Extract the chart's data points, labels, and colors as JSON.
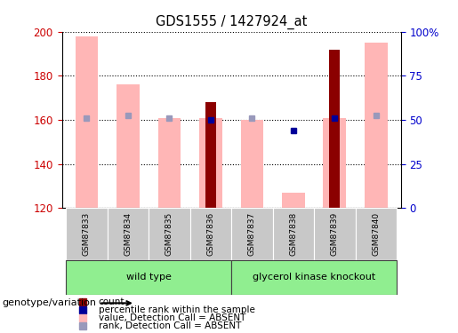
{
  "title": "GDS1555 / 1427924_at",
  "samples": [
    "GSM87833",
    "GSM87834",
    "GSM87835",
    "GSM87836",
    "GSM87837",
    "GSM87838",
    "GSM87839",
    "GSM87840"
  ],
  "pink_bar_heights": [
    198,
    176,
    161,
    161,
    160,
    127,
    161,
    195
  ],
  "red_bar_heights": [
    null,
    null,
    null,
    168,
    null,
    null,
    192,
    null
  ],
  "rank_y": [
    161,
    162,
    161,
    160,
    161,
    155,
    161,
    162
  ],
  "rank_is_dark": [
    false,
    false,
    false,
    true,
    false,
    true,
    true,
    false
  ],
  "ylim_left": [
    120,
    200
  ],
  "ylim_right": [
    0,
    100
  ],
  "yticks_left": [
    120,
    140,
    160,
    180,
    200
  ],
  "ytick_labels_right": [
    "0",
    "25",
    "50",
    "75",
    "100%"
  ],
  "yticks_right": [
    0,
    25,
    50,
    75,
    100
  ],
  "color_pink_bar": "#FFB6B6",
  "color_red_bar": "#8B0000",
  "color_rank_dark": "#000099",
  "color_rank_light": "#9999BB",
  "color_left_axis": "#CC0000",
  "color_right_axis": "#0000CC",
  "group_wt_label": "wild type",
  "group_gk_label": "glycerol kinase knockout",
  "group_color": "#90EE90",
  "legend_items": [
    {
      "color": "#8B0000",
      "label": "count",
      "marker": "s"
    },
    {
      "color": "#000099",
      "label": "percentile rank within the sample",
      "marker": "s"
    },
    {
      "color": "#FFB6B6",
      "label": "value, Detection Call = ABSENT",
      "marker": "s"
    },
    {
      "color": "#9999BB",
      "label": "rank, Detection Call = ABSENT",
      "marker": "s"
    }
  ]
}
